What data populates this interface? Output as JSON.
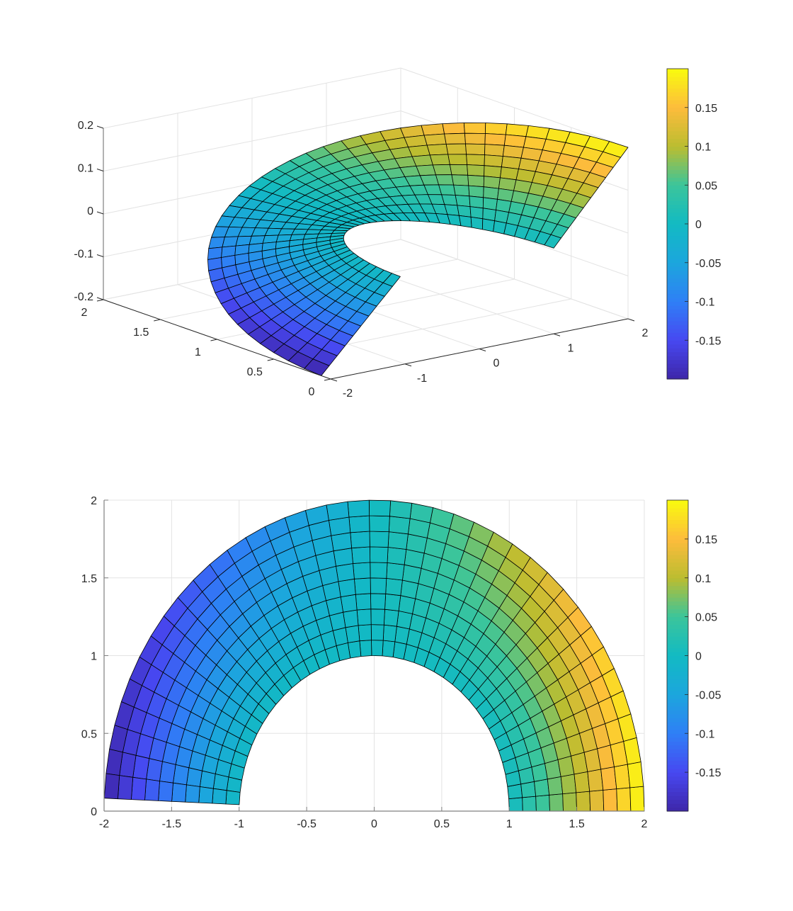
{
  "chart_data": [
    {
      "type": "surface3d",
      "title": "",
      "surface": {
        "r_range": [
          1,
          2
        ],
        "r_segments": 10,
        "theta_range": [
          0,
          3.1
        ],
        "theta_segments": 39,
        "z_function": "0.2*(r-1)*cos(theta)",
        "x": "r*cos(theta)",
        "y": "r*sin(theta)"
      },
      "xlim": [
        -2,
        2
      ],
      "ylim": [
        0,
        2
      ],
      "zlim": [
        -0.2,
        0.2
      ],
      "xticks": [
        -2,
        -1,
        0,
        1,
        2
      ],
      "xtick_labels": [
        "-2",
        "-1",
        "0",
        "1",
        "2"
      ],
      "yticks": [
        0,
        0.5,
        1,
        1.5,
        2
      ],
      "ytick_labels": [
        "0",
        "0.5",
        "1",
        "1.5",
        "2"
      ],
      "zticks": [
        -0.2,
        -0.1,
        0,
        0.1,
        0.2
      ],
      "ztick_labels": [
        "-0.2",
        "-0.1",
        "0",
        "0.1",
        "0.2"
      ],
      "grid": true,
      "view": {
        "azimuth": -37.5,
        "elevation": 30
      },
      "colorbar": {
        "clim": [
          -0.2,
          0.2
        ],
        "ticks": [
          -0.15,
          -0.1,
          -0.05,
          0,
          0.05,
          0.1,
          0.15
        ],
        "tick_labels": [
          "-0.15",
          "-0.1",
          "-0.05",
          "0",
          "0.05",
          "0.1",
          "0.15"
        ],
        "colormap": "parula"
      }
    },
    {
      "type": "surface2d",
      "title": "",
      "surface": {
        "r_range": [
          1,
          2
        ],
        "r_segments": 10,
        "theta_range": [
          0,
          3.1
        ],
        "theta_segments": 39,
        "z_function": "0.2*(r-1)*cos(theta)"
      },
      "xlim": [
        -2,
        2
      ],
      "ylim": [
        0,
        2
      ],
      "xticks": [
        -2,
        -1.5,
        -1,
        -0.5,
        0,
        0.5,
        1,
        1.5,
        2
      ],
      "xtick_labels": [
        "-2",
        "-1.5",
        "-1",
        "-0.5",
        "0",
        "0.5",
        "1",
        "1.5",
        "2"
      ],
      "yticks": [
        0,
        0.5,
        1,
        1.5,
        2
      ],
      "ytick_labels": [
        "0",
        "0.5",
        "1",
        "1.5",
        "2"
      ],
      "grid": true,
      "colorbar": {
        "clim": [
          -0.2,
          0.2
        ],
        "ticks": [
          -0.15,
          -0.1,
          -0.05,
          0,
          0.05,
          0.1,
          0.15
        ],
        "tick_labels": [
          "-0.15",
          "-0.1",
          "-0.05",
          "0",
          "0.05",
          "0.1",
          "0.15"
        ],
        "colormap": "parula"
      }
    }
  ],
  "colors": {
    "parula": [
      "#3e26a8",
      "#4748f1",
      "#2f7ff6",
      "#1ca6dd",
      "#12bac3",
      "#3bc59b",
      "#bbbd30",
      "#fdbc3c",
      "#f9fb0e"
    ],
    "grid": "#e3e3e3",
    "axis": "#262626",
    "edge": "#000000"
  }
}
